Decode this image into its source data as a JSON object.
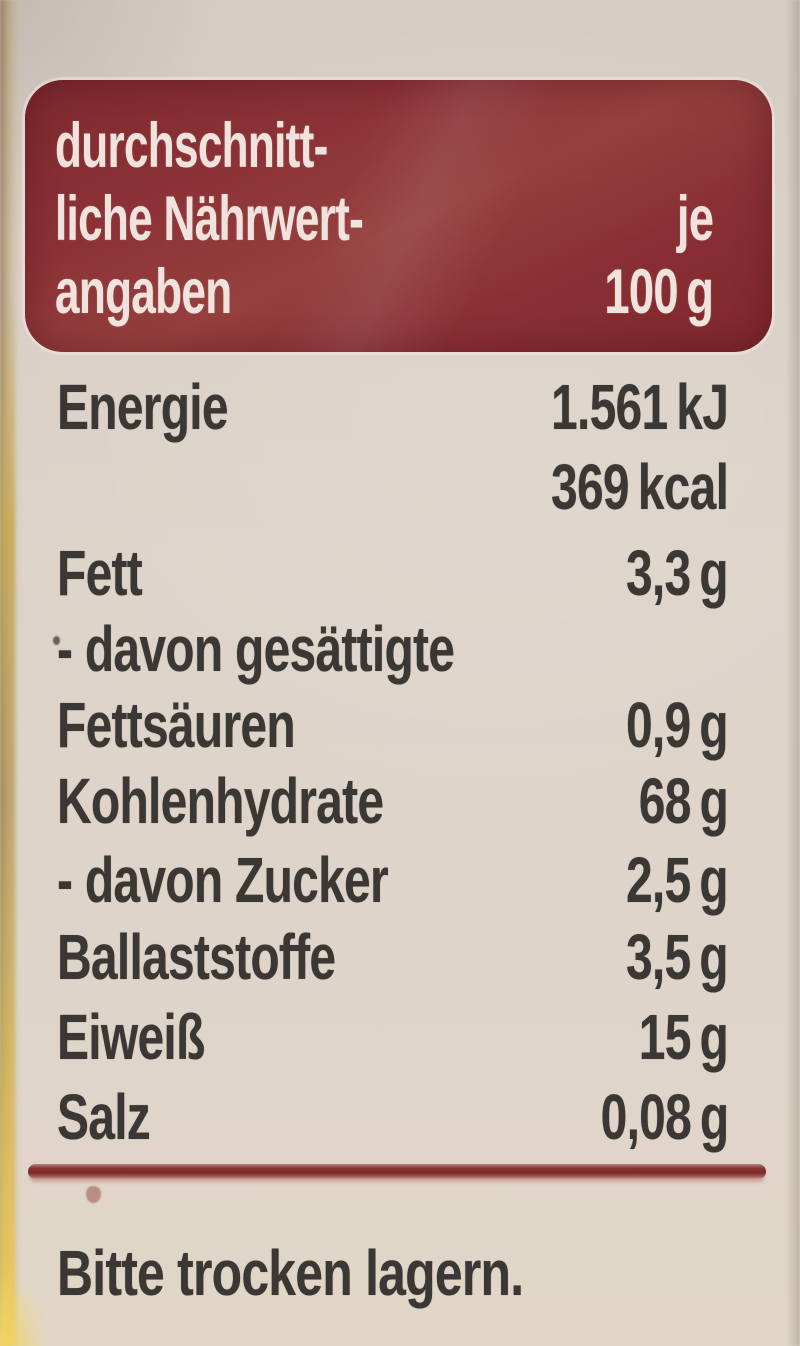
{
  "header": {
    "title_lines": [
      "durchschnitt-",
      "liche Nährwert-",
      "angaben"
    ],
    "unit_lines": [
      "je",
      "100 g"
    ],
    "bg_color": "#8a2f33",
    "text_color": "#f0e3de"
  },
  "rows": [
    {
      "name": "Energie",
      "value": "1.561 kJ"
    },
    {
      "name": "",
      "value": "369 kcal"
    },
    {
      "name": "Fett",
      "value": "3,3 g"
    },
    {
      "name": "- davon gesättigte",
      "value": ""
    },
    {
      "name": "Fettsäuren",
      "value": "0,9 g"
    },
    {
      "name": "Kohlenhydrate",
      "value": "68 g"
    },
    {
      "name": "- davon Zucker",
      "value": "2,5 g"
    },
    {
      "name": "Ballaststoffe",
      "value": "3,5 g"
    },
    {
      "name": "Eiweiß",
      "value": "15 g"
    },
    {
      "name": "Salz",
      "value": "0,08 g"
    }
  ],
  "footer_note": "Bitte trocken lagern.",
  "colors": {
    "accent_red": "#8a2f33",
    "body_text": "#3a3734",
    "label_background": "#dcd3c8",
    "package_edge_gold": "#e0c05a"
  }
}
